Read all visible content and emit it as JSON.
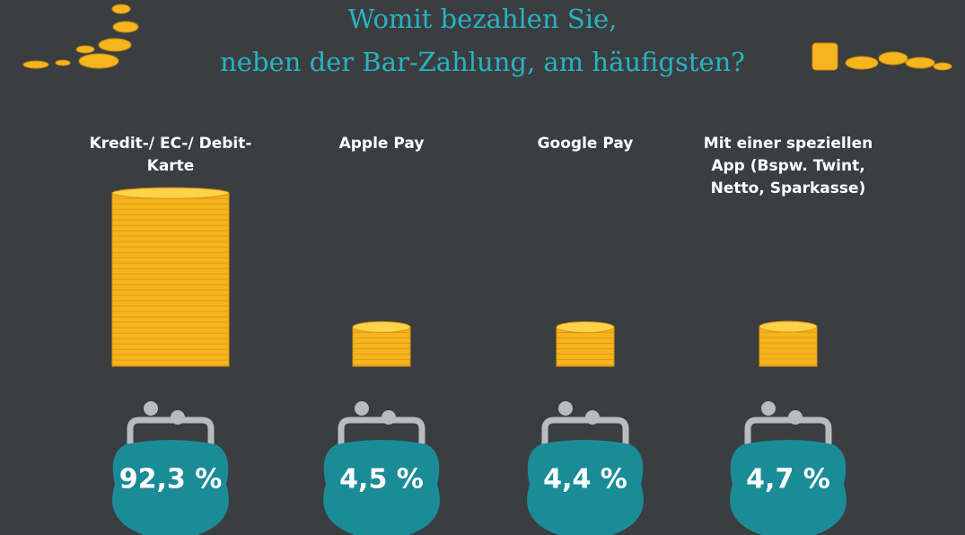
{
  "chart_data": {
    "type": "coin-stacks",
    "title": [
      "Womit bezahlen Sie,",
      "neben der Bar-Zahlung, am häufigsten?"
    ],
    "categories": [
      "Kredit-/ EC-/ Debit-Karte",
      "Apple Pay",
      "Google Pay",
      "Mit einer speziellen App (Bspw. Twint, Netto, Sparkasse)"
    ],
    "values": [
      92.3,
      4.5,
      4.4,
      4.7
    ],
    "value_labels": [
      "92,3 %",
      "4,5 %",
      "4,4 %",
      "4,7 %"
    ],
    "color": "#f5b51e"
  }
}
